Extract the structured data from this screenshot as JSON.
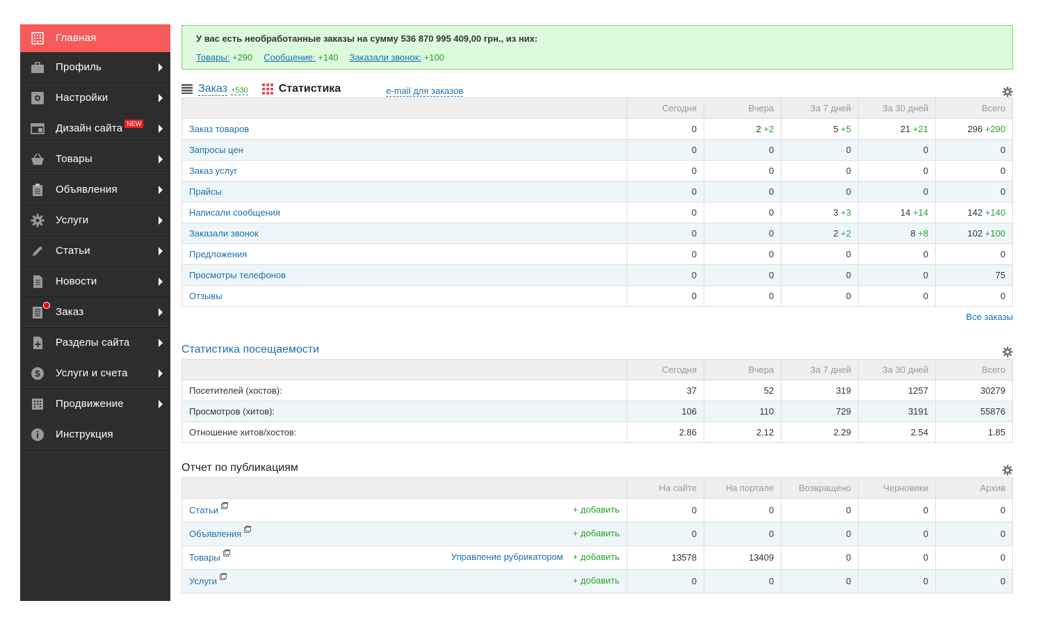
{
  "sidebar": {
    "items": [
      {
        "label": "Главная",
        "icon": "building-icon",
        "active": true,
        "arrow": false
      },
      {
        "label": "Профиль",
        "icon": "briefcase-icon",
        "arrow": true
      },
      {
        "label": "Настройки",
        "icon": "settings-box-icon",
        "arrow": true
      },
      {
        "label": "Дизайн сайта",
        "icon": "window-icon",
        "arrow": true,
        "badge": "NEW"
      },
      {
        "label": "Товары",
        "icon": "basket-icon",
        "arrow": true
      },
      {
        "label": "Объявления",
        "icon": "clipboard-icon",
        "arrow": true
      },
      {
        "label": "Услуги",
        "icon": "gear-icon",
        "arrow": true
      },
      {
        "label": "Статьи",
        "icon": "pencil-icon",
        "arrow": true
      },
      {
        "label": "Новости",
        "icon": "document-icon",
        "arrow": true
      },
      {
        "label": "Заказ",
        "icon": "order-list-icon",
        "arrow": true,
        "dot": true
      },
      {
        "label": "Разделы сайта",
        "icon": "add-page-icon",
        "arrow": true
      },
      {
        "label": "Услуги и счета",
        "icon": "dollar-icon",
        "arrow": true
      },
      {
        "label": "Продвижение",
        "icon": "chart-building-icon",
        "arrow": true
      },
      {
        "label": "Инструкция",
        "icon": "info-icon",
        "arrow": false
      }
    ]
  },
  "alert": {
    "title": "У вас есть необработанные заказы на сумму 536 870 995 409,00 грн., из них:",
    "items": [
      {
        "label": "Товары:",
        "count": "+290"
      },
      {
        "label": "Сообщение:",
        "count": "+140"
      },
      {
        "label": "Заказали звонок:",
        "count": "+100"
      }
    ]
  },
  "orders": {
    "tab_order": "Заказ",
    "tab_order_count": "+530",
    "tab_stats": "Статистика",
    "email_link": "e-mail для заказов",
    "columns": [
      "Сегодня",
      "Вчера",
      "За 7 дней",
      "За 30 дней",
      "Всего"
    ],
    "rows": [
      {
        "name": "Заказ товаров",
        "v": [
          [
            "0",
            ""
          ],
          [
            "2",
            "+2"
          ],
          [
            "5",
            "+5"
          ],
          [
            "21",
            "+21"
          ],
          [
            "296",
            "+290"
          ]
        ]
      },
      {
        "name": "Запросы цен",
        "v": [
          [
            "0",
            ""
          ],
          [
            "0",
            ""
          ],
          [
            "0",
            ""
          ],
          [
            "0",
            ""
          ],
          [
            "0",
            ""
          ]
        ]
      },
      {
        "name": "Заказ услуг",
        "v": [
          [
            "0",
            ""
          ],
          [
            "0",
            ""
          ],
          [
            "0",
            ""
          ],
          [
            "0",
            ""
          ],
          [
            "0",
            ""
          ]
        ]
      },
      {
        "name": "Прайсы",
        "v": [
          [
            "0",
            ""
          ],
          [
            "0",
            ""
          ],
          [
            "0",
            ""
          ],
          [
            "0",
            ""
          ],
          [
            "0",
            ""
          ]
        ]
      },
      {
        "name": "Написали сообщения",
        "v": [
          [
            "0",
            ""
          ],
          [
            "0",
            ""
          ],
          [
            "3",
            "+3"
          ],
          [
            "14",
            "+14"
          ],
          [
            "142",
            "+140"
          ]
        ]
      },
      {
        "name": "Заказали звонок",
        "v": [
          [
            "0",
            ""
          ],
          [
            "0",
            ""
          ],
          [
            "2",
            "+2"
          ],
          [
            "8",
            "+8"
          ],
          [
            "102",
            "+100"
          ]
        ]
      },
      {
        "name": "Предложения",
        "v": [
          [
            "0",
            ""
          ],
          [
            "0",
            ""
          ],
          [
            "0",
            ""
          ],
          [
            "0",
            ""
          ],
          [
            "0",
            ""
          ]
        ]
      },
      {
        "name": "Просмотры телефонов",
        "v": [
          [
            "0",
            ""
          ],
          [
            "0",
            ""
          ],
          [
            "0",
            ""
          ],
          [
            "0",
            ""
          ],
          [
            "75",
            ""
          ]
        ]
      },
      {
        "name": "Отзывы",
        "v": [
          [
            "0",
            ""
          ],
          [
            "0",
            ""
          ],
          [
            "0",
            ""
          ],
          [
            "0",
            ""
          ],
          [
            "0",
            ""
          ]
        ]
      }
    ],
    "all_orders": "Все заказы"
  },
  "visits": {
    "title": "Статистика посещаемости",
    "columns": [
      "Сегодня",
      "Вчера",
      "За 7 дней",
      "За 30 дней",
      "Всего"
    ],
    "rows": [
      {
        "name": "Посетителей (хостов):",
        "v": [
          "37",
          "52",
          "319",
          "1257",
          "30279"
        ]
      },
      {
        "name": "Просмотров (хитов):",
        "v": [
          "106",
          "110",
          "729",
          "3191",
          "55876"
        ]
      },
      {
        "name": "Отношение хитов/хостов:",
        "v": [
          "2.86",
          "2.12",
          "2.29",
          "2.54",
          "1.85"
        ]
      }
    ]
  },
  "publications": {
    "title": "Отчет по публикациям",
    "columns": [
      "На сайте",
      "На портале",
      "Возвращено",
      "Черновики",
      "Архив"
    ],
    "add_label": "+ добавить",
    "rows": [
      {
        "name": "Статьи",
        "extra": "",
        "v": [
          "0",
          "0",
          "0",
          "0",
          "0"
        ]
      },
      {
        "name": "Объявления",
        "extra": "",
        "v": [
          "0",
          "0",
          "0",
          "0",
          "0"
        ]
      },
      {
        "name": "Товары",
        "extra": "Управление рубрикатором",
        "v": [
          "13578",
          "13409",
          "0",
          "0",
          "0"
        ]
      },
      {
        "name": "Услуги",
        "extra": "",
        "v": [
          "0",
          "0",
          "0",
          "0",
          "0"
        ]
      }
    ]
  },
  "colors": {
    "sidebar_bg": "#2d2d2d",
    "active": "#f65a5a",
    "link": "#1b6fb0",
    "green": "#2aa22a",
    "alert_bg": "#ddfadd"
  }
}
